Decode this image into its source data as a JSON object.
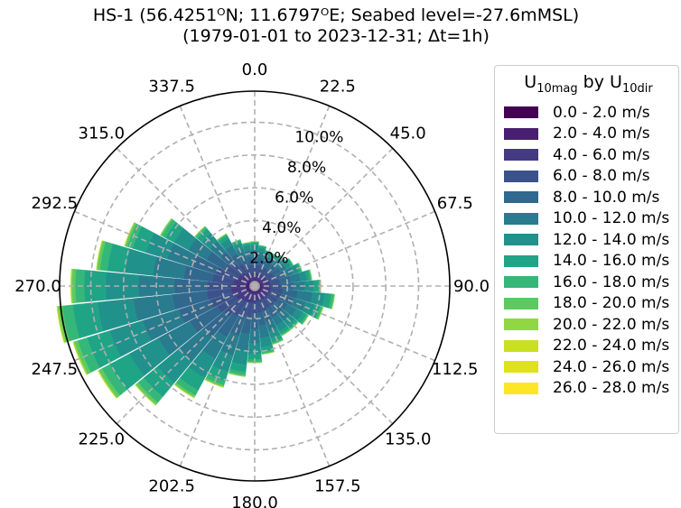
{
  "title_line1": "HS-1 (56.4251ᴼN; 11.6797ᴼE; Seabed level=-27.6mMSL)",
  "title_line2": "(1979-01-01 to 2023-12-31; Δt=1h)",
  "legend": {
    "title_main": "U",
    "title_sub1": "10mag",
    "title_mid": " by U",
    "title_sub2": "10dir"
  },
  "chart_data": {
    "type": "windrose",
    "direction_labels": [
      "0.0",
      "22.5",
      "45.0",
      "67.5",
      "90.0",
      "112.5",
      "135.0",
      "157.5",
      "180.0",
      "202.5",
      "225.0",
      "247.5",
      "270.0",
      "292.5",
      "315.0",
      "337.5"
    ],
    "radial_ticks": [
      2.0,
      4.0,
      6.0,
      8.0,
      10.0
    ],
    "radial_tick_labels": [
      "2.0%",
      "4.0%",
      "6.0%",
      "8.0%",
      "10.0%"
    ],
    "rmax": 11.9,
    "grid": true,
    "legend_position": "right",
    "bins": [
      {
        "label": "0.0 - 2.0 m/s",
        "color": "#440154"
      },
      {
        "label": "2.0 - 4.0 m/s",
        "color": "#481f70"
      },
      {
        "label": "4.0 - 6.0 m/s",
        "color": "#443983"
      },
      {
        "label": "6.0 - 8.0 m/s",
        "color": "#3b528b"
      },
      {
        "label": "8.0 - 10.0 m/s",
        "color": "#31688e"
      },
      {
        "label": "10.0 - 12.0 m/s",
        "color": "#287c8e"
      },
      {
        "label": "12.0 - 14.0 m/s",
        "color": "#21918c"
      },
      {
        "label": "14.0 - 16.0 m/s",
        "color": "#20a486"
      },
      {
        "label": "16.0 - 18.0 m/s",
        "color": "#35b779"
      },
      {
        "label": "18.0 - 20.0 m/s",
        "color": "#5ec962"
      },
      {
        "label": "20.0 - 22.0 m/s",
        "color": "#90d743"
      },
      {
        "label": "22.0 - 24.0 m/s",
        "color": "#c8e020"
      },
      {
        "label": "24.0 - 26.0 m/s",
        "color": "#dde318"
      },
      {
        "label": "26.0 - 28.0 m/s",
        "color": "#fde725"
      }
    ],
    "sector_width_deg": 11.25,
    "sectors": [
      {
        "dir": 0.0,
        "values": [
          0.1,
          0.3,
          0.4,
          0.5,
          0.5,
          0.4,
          0.3,
          0.15,
          0.05,
          0.02,
          0.01,
          0,
          0,
          0
        ]
      },
      {
        "dir": 11.25,
        "values": [
          0.1,
          0.3,
          0.4,
          0.5,
          0.45,
          0.35,
          0.25,
          0.1,
          0.04,
          0.02,
          0,
          0,
          0,
          0
        ]
      },
      {
        "dir": 22.5,
        "values": [
          0.1,
          0.3,
          0.4,
          0.45,
          0.4,
          0.3,
          0.2,
          0.1,
          0.03,
          0.01,
          0,
          0,
          0,
          0
        ]
      },
      {
        "dir": 33.75,
        "values": [
          0.1,
          0.3,
          0.4,
          0.45,
          0.4,
          0.3,
          0.2,
          0.08,
          0.03,
          0.01,
          0,
          0,
          0,
          0
        ]
      },
      {
        "dir": 45.0,
        "values": [
          0.1,
          0.3,
          0.4,
          0.45,
          0.45,
          0.35,
          0.25,
          0.1,
          0.04,
          0.01,
          0,
          0,
          0,
          0
        ]
      },
      {
        "dir": 56.25,
        "values": [
          0.1,
          0.3,
          0.4,
          0.5,
          0.5,
          0.4,
          0.3,
          0.12,
          0.05,
          0.02,
          0,
          0,
          0,
          0
        ]
      },
      {
        "dir": 67.5,
        "values": [
          0.1,
          0.3,
          0.45,
          0.55,
          0.55,
          0.5,
          0.35,
          0.15,
          0.06,
          0.02,
          0,
          0,
          0,
          0
        ]
      },
      {
        "dir": 78.75,
        "values": [
          0.1,
          0.35,
          0.5,
          0.6,
          0.65,
          0.6,
          0.4,
          0.2,
          0.08,
          0.03,
          0.01,
          0,
          0,
          0
        ]
      },
      {
        "dir": 90.0,
        "values": [
          0.1,
          0.35,
          0.5,
          0.65,
          0.75,
          0.7,
          0.55,
          0.3,
          0.1,
          0.04,
          0.01,
          0,
          0,
          0
        ]
      },
      {
        "dir": 101.25,
        "values": [
          0.1,
          0.35,
          0.55,
          0.75,
          0.9,
          0.9,
          0.75,
          0.4,
          0.15,
          0.05,
          0.02,
          0,
          0,
          0
        ]
      },
      {
        "dir": 112.5,
        "values": [
          0.1,
          0.35,
          0.55,
          0.7,
          0.8,
          0.75,
          0.6,
          0.35,
          0.12,
          0.05,
          0.02,
          0,
          0,
          0
        ]
      },
      {
        "dir": 123.75,
        "values": [
          0.1,
          0.35,
          0.5,
          0.65,
          0.7,
          0.6,
          0.45,
          0.25,
          0.1,
          0.04,
          0.01,
          0,
          0,
          0
        ]
      },
      {
        "dir": 135.0,
        "values": [
          0.1,
          0.35,
          0.5,
          0.6,
          0.65,
          0.55,
          0.4,
          0.2,
          0.08,
          0.03,
          0.01,
          0,
          0,
          0
        ]
      },
      {
        "dir": 146.25,
        "values": [
          0.1,
          0.35,
          0.5,
          0.6,
          0.65,
          0.55,
          0.4,
          0.2,
          0.08,
          0.03,
          0.01,
          0,
          0,
          0
        ]
      },
      {
        "dir": 157.5,
        "values": [
          0.1,
          0.35,
          0.5,
          0.65,
          0.7,
          0.6,
          0.45,
          0.25,
          0.1,
          0.03,
          0.01,
          0,
          0,
          0
        ]
      },
      {
        "dir": 168.75,
        "values": [
          0.1,
          0.35,
          0.5,
          0.7,
          0.8,
          0.75,
          0.55,
          0.3,
          0.1,
          0.04,
          0.01,
          0,
          0,
          0
        ]
      },
      {
        "dir": 180.0,
        "values": [
          0.1,
          0.35,
          0.55,
          0.75,
          0.9,
          0.85,
          0.65,
          0.35,
          0.13,
          0.05,
          0.02,
          0,
          0,
          0
        ]
      },
      {
        "dir": 191.25,
        "values": [
          0.1,
          0.35,
          0.6,
          0.85,
          1.05,
          1.05,
          0.85,
          0.45,
          0.18,
          0.07,
          0.02,
          0,
          0,
          0
        ]
      },
      {
        "dir": 202.5,
        "values": [
          0.1,
          0.35,
          0.6,
          0.95,
          1.2,
          1.25,
          1.05,
          0.6,
          0.25,
          0.1,
          0.03,
          0.01,
          0,
          0
        ]
      },
      {
        "dir": 213.75,
        "values": [
          0.1,
          0.35,
          0.65,
          1.05,
          1.4,
          1.5,
          1.35,
          0.85,
          0.35,
          0.12,
          0.04,
          0.01,
          0,
          0
        ]
      },
      {
        "dir": 225.0,
        "values": [
          0.1,
          0.4,
          0.7,
          1.2,
          1.7,
          1.9,
          1.7,
          1.1,
          0.45,
          0.16,
          0.05,
          0.01,
          0,
          0
        ]
      },
      {
        "dir": 236.25,
        "values": [
          0.1,
          0.4,
          0.8,
          1.3,
          1.9,
          2.2,
          2.0,
          1.35,
          0.55,
          0.2,
          0.06,
          0.02,
          0,
          0
        ]
      },
      {
        "dir": 247.5,
        "values": [
          0.1,
          0.45,
          0.85,
          1.45,
          2.0,
          2.3,
          2.1,
          1.45,
          0.6,
          0.22,
          0.07,
          0.02,
          0,
          0
        ]
      },
      {
        "dir": 258.75,
        "values": [
          0.1,
          0.45,
          0.9,
          1.5,
          2.1,
          2.4,
          2.2,
          1.5,
          0.65,
          0.24,
          0.08,
          0.02,
          0,
          0
        ]
      },
      {
        "dir": 270.0,
        "values": [
          0.1,
          0.45,
          0.9,
          1.45,
          2.0,
          2.2,
          2.0,
          1.3,
          0.55,
          0.2,
          0.06,
          0.02,
          0,
          0
        ]
      },
      {
        "dir": 281.25,
        "values": [
          0.1,
          0.4,
          0.8,
          1.3,
          1.75,
          1.9,
          1.7,
          1.1,
          0.45,
          0.16,
          0.05,
          0.01,
          0,
          0
        ]
      },
      {
        "dir": 292.5,
        "values": [
          0.1,
          0.4,
          0.75,
          1.2,
          1.55,
          1.6,
          1.35,
          0.85,
          0.35,
          0.12,
          0.04,
          0.01,
          0,
          0
        ]
      },
      {
        "dir": 303.75,
        "values": [
          0.1,
          0.35,
          0.65,
          1.0,
          1.25,
          1.25,
          1.0,
          0.6,
          0.25,
          0.08,
          0.02,
          0,
          0,
          0
        ]
      },
      {
        "dir": 315.0,
        "values": [
          0.1,
          0.35,
          0.55,
          0.8,
          0.9,
          0.85,
          0.65,
          0.35,
          0.14,
          0.05,
          0.01,
          0,
          0,
          0
        ]
      },
      {
        "dir": 326.25,
        "values": [
          0.1,
          0.3,
          0.5,
          0.65,
          0.7,
          0.6,
          0.45,
          0.22,
          0.08,
          0.03,
          0.01,
          0,
          0,
          0
        ]
      },
      {
        "dir": 337.5,
        "values": [
          0.1,
          0.3,
          0.45,
          0.55,
          0.55,
          0.45,
          0.35,
          0.15,
          0.06,
          0.02,
          0,
          0,
          0,
          0
        ]
      },
      {
        "dir": 348.75,
        "values": [
          0.1,
          0.3,
          0.4,
          0.5,
          0.5,
          0.4,
          0.3,
          0.12,
          0.05,
          0.02,
          0,
          0,
          0,
          0
        ]
      }
    ]
  }
}
